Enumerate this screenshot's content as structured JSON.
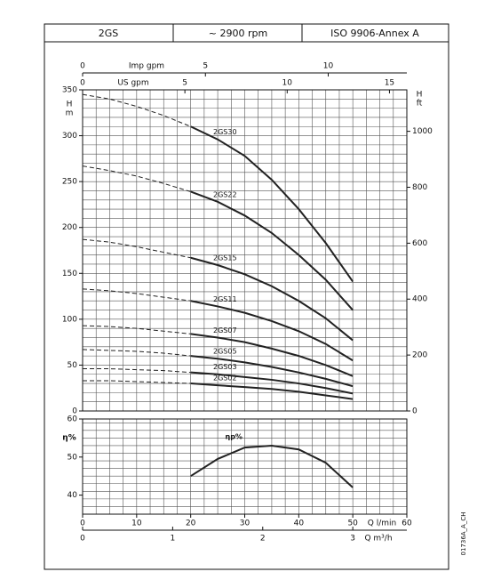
{
  "header": [
    "2GS",
    "~ 2900 rpm",
    "ISO 9906-Annex A"
  ],
  "footnote": "01736A_A_CH",
  "chart_data": [
    {
      "type": "line",
      "x": [
        0,
        5,
        10,
        15,
        20,
        25,
        30,
        35,
        40,
        45,
        50
      ],
      "xlim": [
        0,
        60
      ],
      "ylim": [
        0,
        350
      ],
      "yticks": [
        0,
        50,
        100,
        150,
        200,
        250,
        300,
        350
      ],
      "ylabel": [
        "H",
        "m"
      ],
      "y2lim": [
        0,
        1148.3
      ],
      "y2ticks": [
        0,
        200,
        400,
        600,
        800,
        1000
      ],
      "y2label": [
        "H",
        "ft"
      ],
      "top_axes": [
        {
          "label": "Imp gpm",
          "lim": [
            0,
            13.2
          ],
          "ticks": [
            0,
            5,
            10
          ]
        },
        {
          "label": "US gpm",
          "lim": [
            0,
            15.85
          ],
          "ticks": [
            0,
            5,
            10,
            15
          ]
        }
      ],
      "solid_from_x": 20,
      "grid_x_step": 2.5,
      "grid_y_step": 10,
      "color": "#222222",
      "series": [
        {
          "name": "2GS30",
          "values": [
            345,
            340,
            332,
            322,
            310,
            296,
            278,
            252,
            220,
            183,
            141
          ]
        },
        {
          "name": "2GS22",
          "values": [
            267,
            262,
            256,
            248,
            239,
            228,
            213,
            194,
            170,
            143,
            110
          ]
        },
        {
          "name": "2GS15",
          "values": [
            187,
            184,
            179,
            173,
            167,
            159,
            149,
            136,
            120,
            101,
            77
          ]
        },
        {
          "name": "2GS11",
          "values": [
            133,
            131,
            128,
            124,
            120,
            114,
            107,
            98,
            87,
            73,
            55
          ]
        },
        {
          "name": "2GS07",
          "values": [
            93,
            92,
            90,
            87,
            84,
            80,
            75,
            68,
            60,
            50,
            38
          ]
        },
        {
          "name": "2GS05",
          "values": [
            67,
            66,
            65,
            63,
            60,
            57,
            53,
            48,
            42,
            35,
            27
          ]
        },
        {
          "name": "2GS03",
          "values": [
            46,
            46,
            45,
            44,
            42,
            40,
            37,
            34,
            30,
            25,
            19
          ]
        },
        {
          "name": "2GS02",
          "values": [
            33,
            33,
            32,
            31,
            30,
            28,
            26,
            24,
            21,
            17,
            13
          ]
        }
      ]
    },
    {
      "type": "line",
      "x": [
        20,
        25,
        30,
        35,
        40,
        45,
        50
      ],
      "xlim": [
        0,
        60
      ],
      "xticks": [
        0,
        10,
        20,
        30,
        40,
        50,
        60
      ],
      "xlabel": "Q l/min",
      "ylim": [
        35,
        60
      ],
      "yticks": [
        40,
        50,
        60
      ],
      "ylabel": "η%",
      "bottom_axes": [
        {
          "label": "Q m³/h",
          "lim": [
            0,
            3.6
          ],
          "ticks": [
            0,
            1,
            2,
            3
          ]
        }
      ],
      "grid_x_step": 2.5,
      "grid_y_step": 2,
      "color": "#222222",
      "series": [
        {
          "name": "ηp%",
          "values": [
            45,
            49.5,
            52.5,
            53,
            52,
            48.5,
            42
          ]
        }
      ]
    }
  ]
}
